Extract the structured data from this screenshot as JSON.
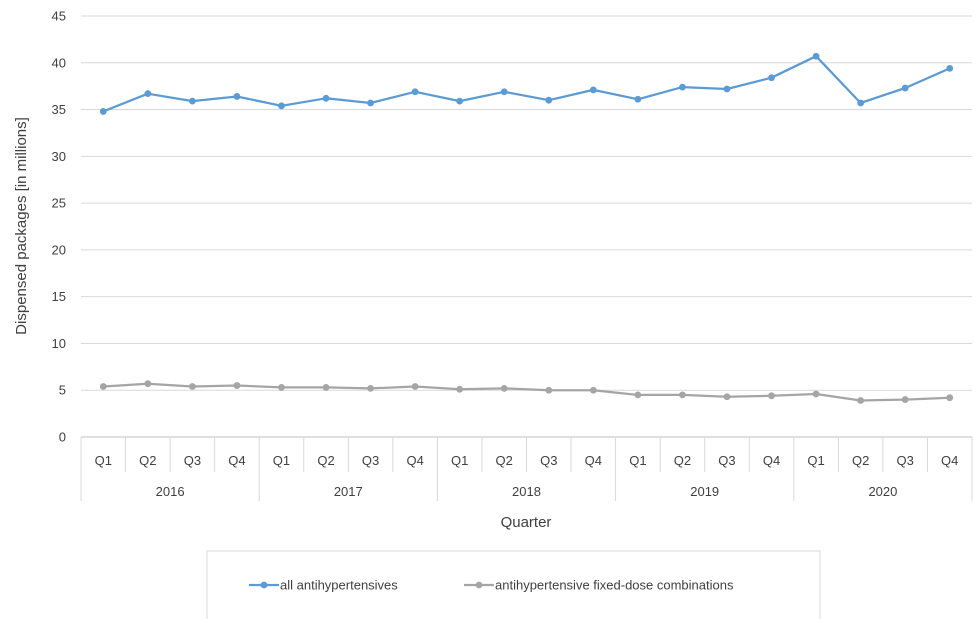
{
  "chart_data": {
    "type": "line",
    "title": "",
    "xlabel": "Quarter",
    "ylabel": "Dispensed packages [in millions]",
    "ylim": [
      0,
      45
    ],
    "yticks": [
      0,
      5,
      10,
      15,
      20,
      25,
      30,
      35,
      40,
      45
    ],
    "grid": "horizontal",
    "legend_position": "bottom",
    "categories": [
      "Q1",
      "Q2",
      "Q3",
      "Q4",
      "Q1",
      "Q2",
      "Q3",
      "Q4",
      "Q1",
      "Q2",
      "Q3",
      "Q4",
      "Q1",
      "Q2",
      "Q3",
      "Q4",
      "Q1",
      "Q2",
      "Q3",
      "Q4"
    ],
    "groups": [
      {
        "label": "2016",
        "count": 4
      },
      {
        "label": "2017",
        "count": 4
      },
      {
        "label": "2018",
        "count": 4
      },
      {
        "label": "2019",
        "count": 4
      },
      {
        "label": "2020",
        "count": 4
      }
    ],
    "series": [
      {
        "name": "all antihypertensives",
        "color": "#5B9BD5",
        "values": [
          34.8,
          36.7,
          35.9,
          36.4,
          35.4,
          36.2,
          35.7,
          36.9,
          35.9,
          36.9,
          36.0,
          37.1,
          36.1,
          37.4,
          37.2,
          38.4,
          40.7,
          35.7,
          37.3,
          39.4
        ]
      },
      {
        "name": "antihypertensive fixed-dose combinations",
        "color": "#A5A5A5",
        "values": [
          5.4,
          5.7,
          5.4,
          5.5,
          5.3,
          5.3,
          5.2,
          5.4,
          5.1,
          5.2,
          5.0,
          5.0,
          4.5,
          4.5,
          4.3,
          4.4,
          4.6,
          3.9,
          4.0,
          4.2
        ]
      }
    ]
  }
}
